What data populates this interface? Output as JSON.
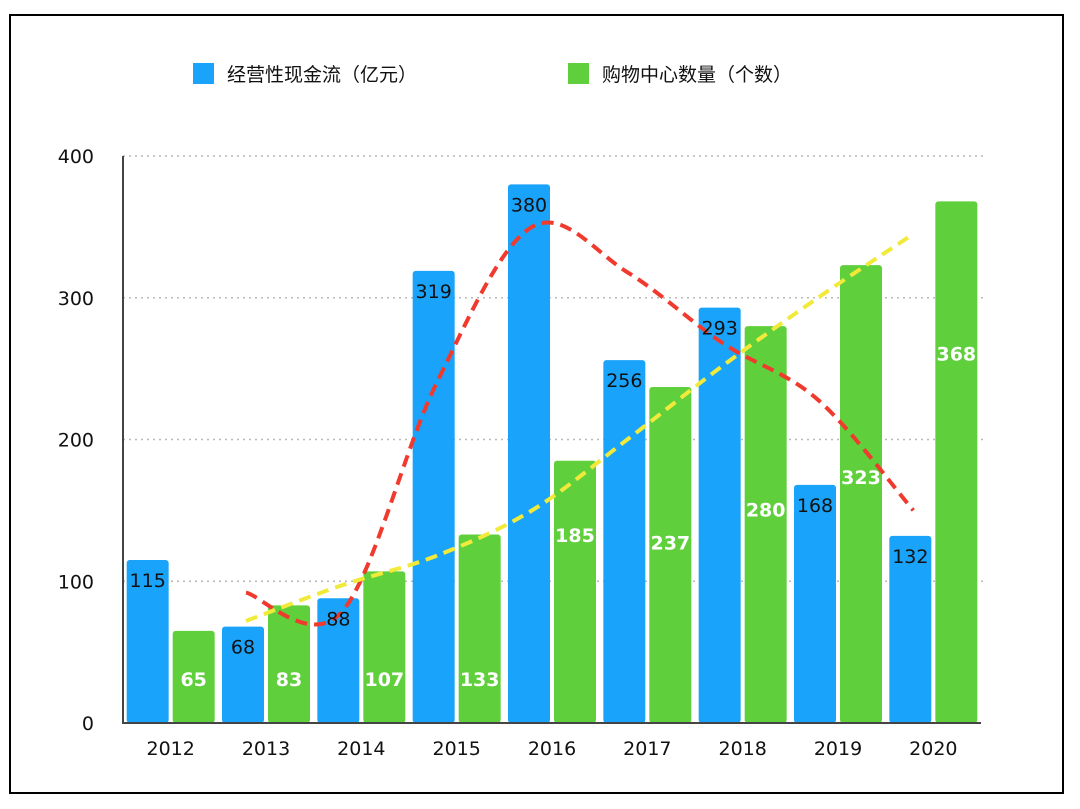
{
  "chart_data": {
    "type": "bar",
    "categories": [
      "2012",
      "2013",
      "2014",
      "2015",
      "2016",
      "2017",
      "2018",
      "2019",
      "2020"
    ],
    "series": [
      {
        "name": "经营性现金流（亿元）",
        "color": "#1aa3fa",
        "values": [
          115,
          68,
          88,
          319,
          380,
          256,
          293,
          168,
          132
        ]
      },
      {
        "name": "购物中心数量（个数）",
        "color": "#5fd03c",
        "values": [
          65,
          83,
          107,
          133,
          185,
          237,
          280,
          323,
          368
        ]
      }
    ],
    "trendlines": [
      {
        "color": "#f03a2e",
        "style": "dashed",
        "x": [
          "2013",
          "2014",
          "2015",
          "2016",
          "2017",
          "2018",
          "2019",
          "2020"
        ],
        "y": [
          92,
          78,
          240,
          350,
          318,
          268,
          228,
          150
        ]
      },
      {
        "color": "#f2ea3a",
        "style": "dashed",
        "x": [
          "2013",
          "2014",
          "2015",
          "2016",
          "2017",
          "2018",
          "2019",
          "2020"
        ],
        "y": [
          72,
          97,
          118,
          150,
          200,
          252,
          300,
          345
        ]
      }
    ],
    "title": "",
    "xlabel": "",
    "ylabel": "",
    "ylim": [
      0,
      400
    ],
    "yticks": [
      "0",
      "100",
      "200",
      "300",
      "400"
    ],
    "grid": "horizontal-dotted",
    "legend_position": "top"
  }
}
